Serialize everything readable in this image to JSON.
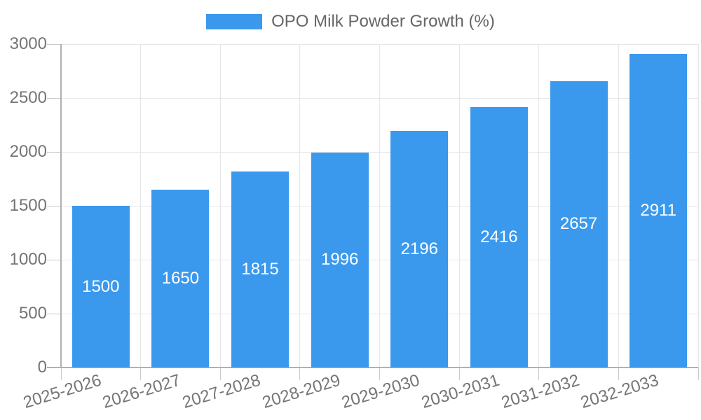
{
  "legend": {
    "label": "OPO Milk Powder Growth (%)",
    "position": "top"
  },
  "chart_data": {
    "type": "bar",
    "title": "",
    "xlabel": "",
    "ylabel": "",
    "categories": [
      "2025-2026",
      "2026-2027",
      "2027-2028",
      "2028-2029",
      "2029-2030",
      "2030-2031",
      "2031-2032",
      "2032-2033"
    ],
    "values": [
      1500,
      1650,
      1815,
      1996,
      2196,
      2416,
      2657,
      2911
    ],
    "value_labels": [
      "1500",
      "1650",
      "1815",
      "1996",
      "2196",
      "2416",
      "2657",
      "2911"
    ],
    "value_label_position": "center-inside",
    "value_label_color": "#ffffff",
    "ylim": [
      0,
      3000
    ],
    "yticks": [
      0,
      500,
      1000,
      1500,
      2000,
      2500,
      3000
    ],
    "grid": true,
    "legend": "OPO Milk Powder Growth (%)",
    "legend_position": "top-center",
    "bar_color": "#3A99ED",
    "axis_color": "#b0b0b0",
    "grid_color": "#e6e6e6",
    "tick_text_color": "#757575",
    "xlabel_rotation_deg": -17
  }
}
